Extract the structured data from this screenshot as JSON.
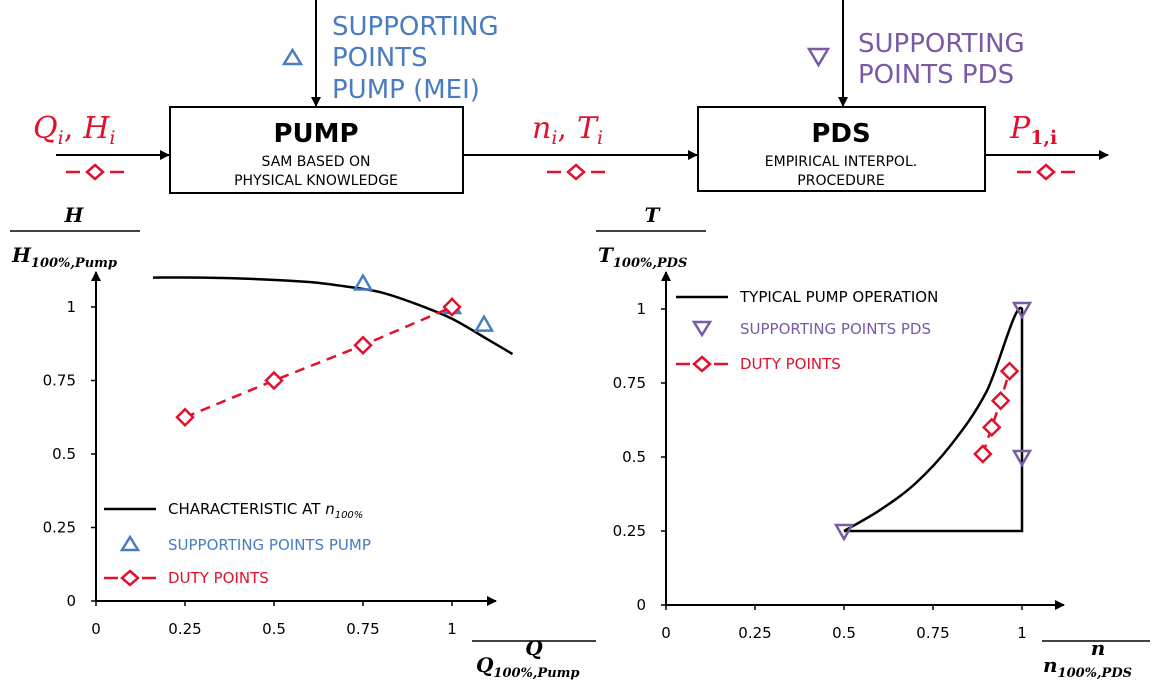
{
  "colors": {
    "black": "#000000",
    "blue": "#4a7cc0",
    "red": "#e3102d",
    "purple": "#7a5aa6"
  },
  "diagram": {
    "pump_block": {
      "title": "PUMP",
      "line1": "SAM BASED ON",
      "line2": "PHYSICAL KNOWLEDGE"
    },
    "pds_block": {
      "title": "PDS",
      "line1": "EMPIRICAL INTERPOL.",
      "line2": "PROCEDURE"
    },
    "pump_support_label": [
      "SUPPORTING",
      "POINTS",
      "PUMP (MEI)"
    ],
    "pds_support_label": [
      "SUPPORTING",
      "POINTS PDS"
    ],
    "input_label": {
      "q": "Q",
      "q_sub": "i",
      "sep": ",",
      "h": "H",
      "h_sub": "i"
    },
    "mid_label": {
      "n": "n",
      "n_sub": "i",
      "sep": ",",
      "t": "T",
      "t_sub": "i"
    },
    "output_label": {
      "p": "P",
      "p_sub": "1,i"
    }
  },
  "chart_data": [
    {
      "type": "line",
      "ylabel": {
        "num": "H",
        "den": "H",
        "den_sub": "100%,Pump"
      },
      "xlabel": {
        "num": "Q",
        "den": "Q",
        "den_sub": "100%,Pump"
      },
      "xlim": [
        0,
        1.2
      ],
      "ylim": [
        0,
        1.15
      ],
      "xticks": [
        "0",
        "0.25",
        "0.5",
        "0.75",
        "1"
      ],
      "yticks": [
        "0",
        "0.25",
        "0.5",
        "0.75",
        "1"
      ],
      "legend_position": "bottom-left",
      "series": [
        {
          "name": "CHARACTERISTIC AT",
          "name_sub": "100%",
          "name_var": "n",
          "kind": "line",
          "color": "#000000",
          "x": [
            0.16,
            0.3,
            0.45,
            0.6,
            0.7,
            0.8,
            0.9,
            1.0,
            1.1,
            1.17
          ],
          "y": [
            1.1,
            1.1,
            1.095,
            1.085,
            1.07,
            1.05,
            1.01,
            0.96,
            0.89,
            0.84
          ]
        },
        {
          "name": "SUPPORTING POINTS PUMP",
          "kind": "marker-triangle-up",
          "color": "#4a7cc0",
          "x": [
            0.75,
            1.0,
            1.09
          ],
          "y": [
            1.08,
            1.0,
            0.94
          ]
        },
        {
          "name": "DUTY POINTS",
          "kind": "dashed-diamond",
          "color": "#e3102d",
          "x": [
            0.25,
            0.5,
            0.75,
            1.0
          ],
          "y": [
            0.625,
            0.75,
            0.87,
            1.0
          ]
        }
      ]
    },
    {
      "type": "line",
      "ylabel": {
        "num": "T",
        "den": "T",
        "den_sub": "100%,PDS"
      },
      "xlabel": {
        "num": "n",
        "den": "n",
        "den_sub": "100%,PDS"
      },
      "xlim": [
        0,
        1.1
      ],
      "ylim": [
        0,
        1.1
      ],
      "xticks": [
        "0",
        "0.25",
        "0.5",
        "0.75",
        "1"
      ],
      "yticks": [
        "0",
        "0.25",
        "0.5",
        "0.75",
        "1"
      ],
      "legend_position": "top-left",
      "series": [
        {
          "name": "TYPICAL PUMP OPERATION",
          "kind": "line",
          "color": "#000000",
          "x": [
            0.5,
            0.6,
            0.7,
            0.8,
            0.9,
            1.0,
            1.0,
            1.0,
            0.5
          ],
          "y": [
            0.25,
            0.32,
            0.41,
            0.54,
            0.72,
            1.0,
            0.5,
            0.25,
            0.25
          ]
        },
        {
          "name": "SUPPORTING POINTS PDS",
          "kind": "marker-triangle-down",
          "color": "#7a5aa6",
          "x": [
            0.5,
            1.0,
            1.0
          ],
          "y": [
            0.25,
            1.0,
            0.5
          ]
        },
        {
          "name": "DUTY POINTS",
          "kind": "dashed-diamond",
          "color": "#e3102d",
          "x": [
            0.89,
            0.915,
            0.94,
            0.965
          ],
          "y": [
            0.51,
            0.6,
            0.69,
            0.79
          ]
        }
      ]
    }
  ]
}
